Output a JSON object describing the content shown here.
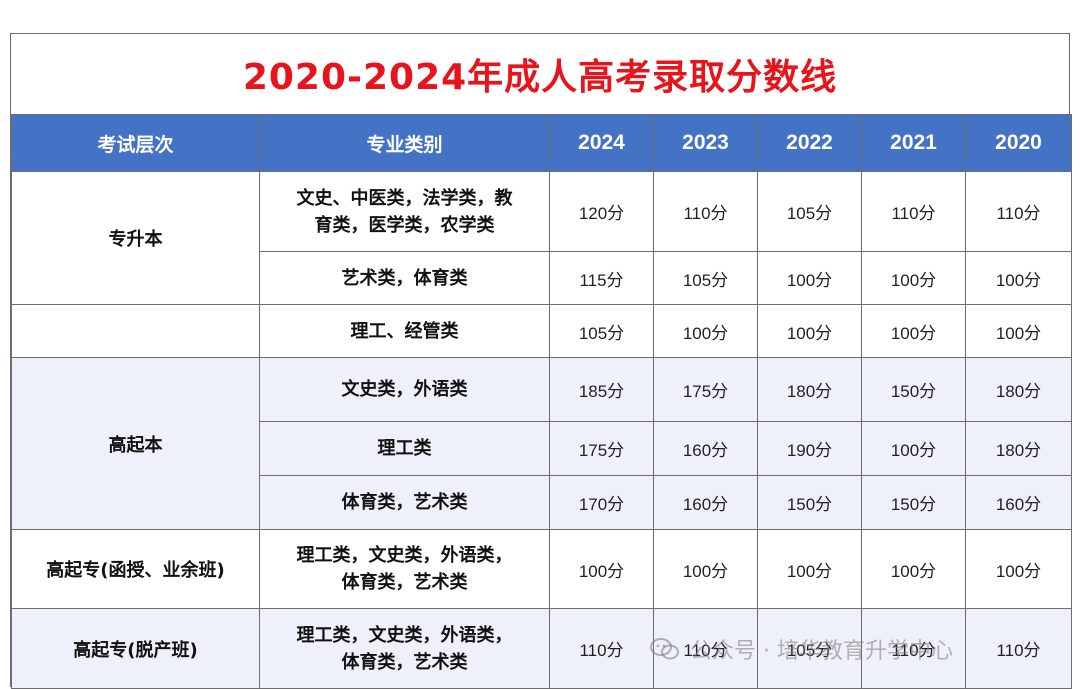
{
  "title": "2020-2024年成人高考录取分数线",
  "headers": {
    "level": "考试层次",
    "category": "专业类别",
    "years": [
      "2024",
      "2023",
      "2022",
      "2021",
      "2020"
    ]
  },
  "groups": {
    "zsb": {
      "level": "专升本"
    },
    "gqb": {
      "level": "高起本"
    },
    "gqz1": {
      "level": "高起专(函授、业余班)"
    },
    "gqz2": {
      "level": "高起专(脱产班)"
    }
  },
  "rows": [
    {
      "major_line1": "文史、中医类，法学类，教",
      "major_line2": "育类，医学类，农学类",
      "scores": [
        "120分",
        "110分",
        "105分",
        "110分",
        "110分"
      ]
    },
    {
      "major_line1": "艺术类，体育类",
      "major_line2": "",
      "scores": [
        "115分",
        "105分",
        "100分",
        "100分",
        "100分"
      ]
    },
    {
      "major_line1": "理工、经管类",
      "major_line2": "",
      "scores": [
        "105分",
        "100分",
        "100分",
        "100分",
        "100分"
      ]
    },
    {
      "major_line1": "文史类，外语类",
      "major_line2": "",
      "scores": [
        "185分",
        "175分",
        "180分",
        "150分",
        "180分"
      ]
    },
    {
      "major_line1": "理工类",
      "major_line2": "",
      "scores": [
        "175分",
        "160分",
        "190分",
        "100分",
        "180分"
      ]
    },
    {
      "major_line1": "体育类，艺术类",
      "major_line2": "",
      "scores": [
        "170分",
        "160分",
        "150分",
        "150分",
        "160分"
      ]
    },
    {
      "major_line1": "理工类，文史类，外语类，",
      "major_line2": "体育类，艺术类",
      "scores": [
        "100分",
        "100分",
        "100分",
        "100分",
        "100分"
      ]
    },
    {
      "major_line1": "理工类，文史类，外语类，",
      "major_line2": "体育类，艺术类",
      "scores": [
        "110分",
        "110分",
        "105分",
        "110分",
        "110分"
      ]
    }
  ],
  "watermark": {
    "text": "公众号 · 培华教育升学中心",
    "icon": "wechat-icon"
  }
}
